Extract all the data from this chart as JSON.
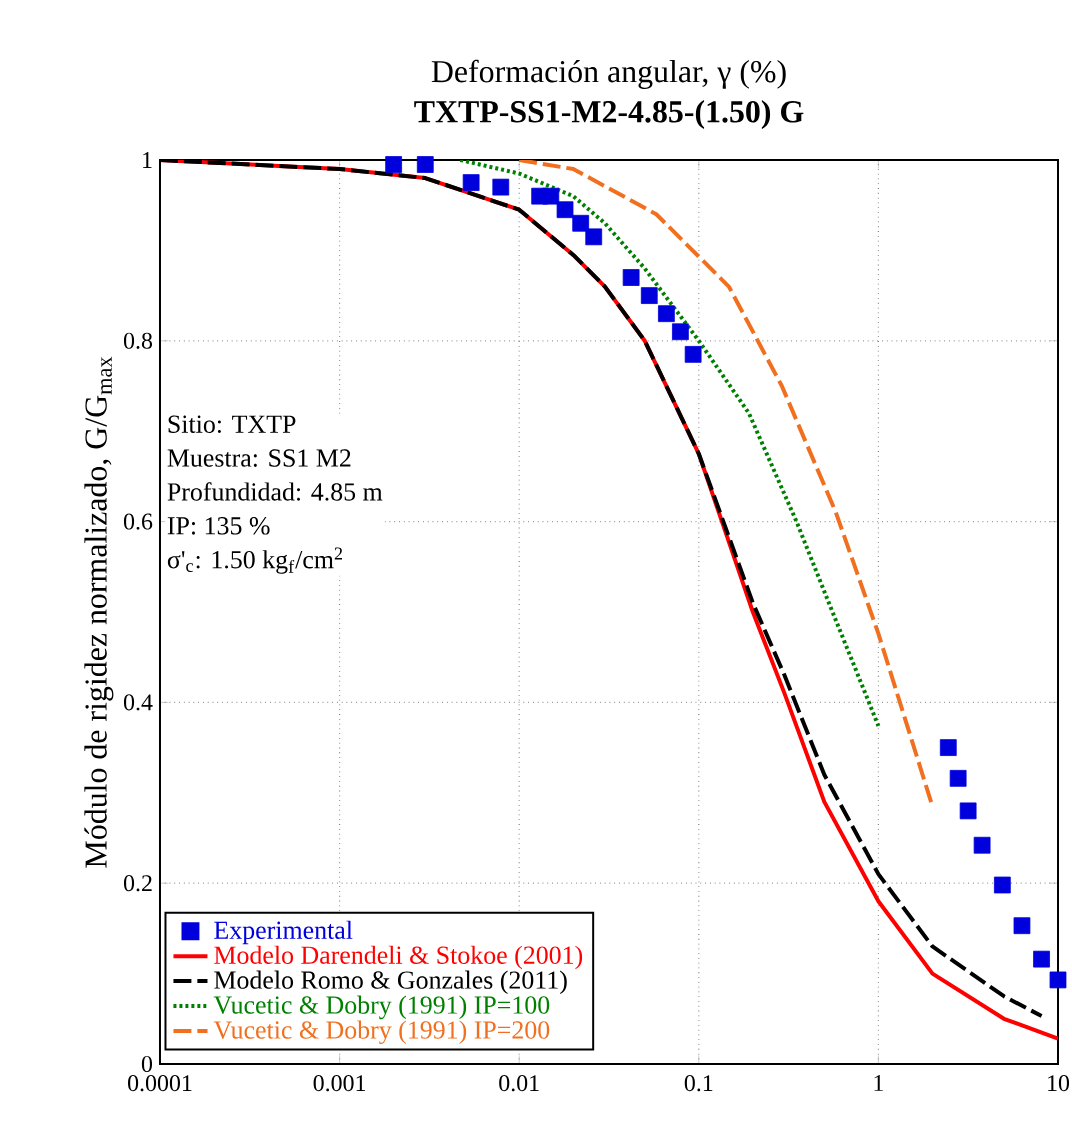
{
  "chart_data": {
    "type": "line",
    "title": "TXTP-SS1-M2-4.85-(1.50) G",
    "xlabel": "Deformación angular, γ (%)",
    "ylabel": "Módulo de rigidez normalizado, G/G$_{max}$",
    "annotations": [
      "Sitio: TXTP",
      "Muestra: SS1 M2",
      "Profundidad: 4.85 m",
      "IP: 135 %",
      "σ'$_{c}$: 1.50 kg$_{f}$/cm$^{2}$"
    ],
    "log": "x",
    "xlim": [
      0.0001,
      10
    ],
    "ylim": [
      0,
      1
    ],
    "xticks": [
      0.0001,
      0.001,
      0.01,
      0.1,
      1,
      10
    ],
    "yticks": [
      0,
      0.2,
      0.4,
      0.6,
      0.8,
      1
    ],
    "grid": true,
    "legend": "bottom left",
    "series": [
      {
        "name": "Experimental",
        "type": "scatter",
        "marker": "square",
        "color": "#0000dd",
        "x": [
          0.002,
          0.003,
          0.0054,
          0.0079,
          0.013,
          0.015,
          0.018,
          0.022,
          0.026,
          0.042,
          0.053,
          0.066,
          0.079,
          0.093,
          2.45,
          2.78,
          3.16,
          3.78,
          4.9,
          6.3,
          8.1,
          10
        ],
        "values": [
          0.995,
          0.995,
          0.975,
          0.97,
          0.96,
          0.96,
          0.945,
          0.93,
          0.915,
          0.87,
          0.85,
          0.83,
          0.81,
          0.785,
          0.35,
          0.316,
          0.28,
          0.242,
          0.198,
          0.153,
          0.116,
          0.093
        ]
      },
      {
        "name": "Modelo Darendeli & Stokoe (2001)",
        "line_style": "solid",
        "color": "#ff0000",
        "x": [
          0.0001,
          0.001,
          0.003,
          0.01,
          0.02,
          0.03,
          0.05,
          0.1,
          0.2,
          0.3,
          0.5,
          1,
          2,
          5,
          10
        ],
        "values": [
          1.0,
          0.99,
          0.98,
          0.945,
          0.895,
          0.86,
          0.8,
          0.675,
          0.5,
          0.41,
          0.29,
          0.18,
          0.1,
          0.05,
          0.028
        ]
      },
      {
        "name": "Modelo Romo & Gonzales (2011)",
        "line_style": "dashed",
        "color": "#000000",
        "x": [
          0.0001,
          0.001,
          0.003,
          0.01,
          0.02,
          0.03,
          0.05,
          0.1,
          0.2,
          0.3,
          0.5,
          1,
          2,
          5,
          8.1
        ],
        "values": [
          1.0,
          0.99,
          0.98,
          0.945,
          0.895,
          0.86,
          0.8,
          0.675,
          0.51,
          0.43,
          0.32,
          0.21,
          0.13,
          0.075,
          0.053
        ]
      },
      {
        "name": "Vucetic & Dobry (1991) IP=100",
        "line_style": "dotted",
        "color": "#008000",
        "x": [
          0.0047,
          0.01,
          0.02,
          0.03,
          0.05,
          0.1,
          0.19,
          0.35,
          0.53,
          1
        ],
        "values": [
          1.0,
          0.985,
          0.96,
          0.93,
          0.88,
          0.8,
          0.72,
          0.6,
          0.51,
          0.374
        ]
      },
      {
        "name": "Vucetic & Dobry (1991) IP=200",
        "line_style": "dashed",
        "color": "#f07020",
        "x": [
          0.01,
          0.02,
          0.058,
          0.147,
          0.29,
          0.58,
          1,
          2
        ],
        "values": [
          1.0,
          0.99,
          0.94,
          0.86,
          0.75,
          0.61,
          0.476,
          0.285
        ]
      }
    ]
  }
}
